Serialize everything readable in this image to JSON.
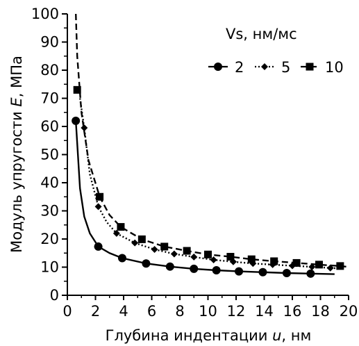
{
  "chart_data": {
    "type": "scatter",
    "xlabel_prefix": "Глубина индентации ",
    "xlabel_var": "u",
    "xlabel_suffix": ", нм",
    "ylabel_prefix": "Модуль упругости ",
    "ylabel_var": "E",
    "ylabel_suffix": ", МПа",
    "xlim": [
      0,
      20
    ],
    "ylim": [
      0,
      100
    ],
    "xticks": [
      0,
      2,
      4,
      6,
      8,
      10,
      12,
      14,
      16,
      18,
      20
    ],
    "yticks": [
      0,
      10,
      20,
      30,
      40,
      50,
      60,
      70,
      80,
      90,
      100
    ],
    "grid": false,
    "legend_title": "Vs, нм/мс",
    "legend_position": "top-right",
    "color": "#000000",
    "series": [
      {
        "name": "2",
        "marker": "circle",
        "line": "solid",
        "points": [
          [
            0.6,
            62
          ],
          [
            2.2,
            17.3
          ],
          [
            3.9,
            13.2
          ],
          [
            5.6,
            11.3
          ],
          [
            7.3,
            10.2
          ],
          [
            9,
            9.4
          ],
          [
            10.6,
            8.9
          ],
          [
            12.2,
            8.5
          ],
          [
            13.9,
            8.2
          ],
          [
            15.6,
            7.9
          ],
          [
            17.3,
            7.7
          ]
        ],
        "curve": [
          [
            0.6,
            62
          ],
          [
            0.9,
            38
          ],
          [
            1.2,
            28
          ],
          [
            1.6,
            22
          ],
          [
            2.2,
            17.3
          ],
          [
            3,
            15
          ],
          [
            3.9,
            13.2
          ],
          [
            5.6,
            11.3
          ],
          [
            7.3,
            10.2
          ],
          [
            9,
            9.4
          ],
          [
            10.6,
            8.9
          ],
          [
            12.2,
            8.5
          ],
          [
            13.9,
            8.2
          ],
          [
            15.6,
            7.9
          ],
          [
            17.3,
            7.7
          ],
          [
            19,
            7.5
          ]
        ]
      },
      {
        "name": "5",
        "marker": "diamond",
        "line": "dotted",
        "points": [
          [
            1.2,
            59.5
          ],
          [
            2.2,
            31.5
          ],
          [
            3.5,
            22
          ],
          [
            4.8,
            18.6
          ],
          [
            6.2,
            16.3
          ],
          [
            7.6,
            14.7
          ],
          [
            9,
            13.6
          ],
          [
            10.4,
            12.6
          ],
          [
            11.8,
            11.9
          ],
          [
            13.2,
            11.3
          ],
          [
            14.6,
            10.9
          ],
          [
            16,
            10.5
          ],
          [
            17.4,
            10.1
          ],
          [
            18.7,
            9.7
          ]
        ],
        "curve": [
          [
            0.9,
            70
          ],
          [
            1.2,
            59.5
          ],
          [
            1.6,
            43
          ],
          [
            2.2,
            31.5
          ],
          [
            2.8,
            26
          ],
          [
            3.5,
            22
          ],
          [
            4.8,
            18.6
          ],
          [
            6.2,
            16.3
          ],
          [
            7.6,
            14.7
          ],
          [
            9,
            13.6
          ],
          [
            10.4,
            12.6
          ],
          [
            11.8,
            11.9
          ],
          [
            13.2,
            11.3
          ],
          [
            14.6,
            10.9
          ],
          [
            16,
            10.5
          ],
          [
            17.4,
            10.1
          ],
          [
            18.7,
            9.7
          ],
          [
            19.5,
            9.5
          ]
        ]
      },
      {
        "name": "10",
        "marker": "square",
        "line": "dashed",
        "points": [
          [
            0.7,
            73
          ],
          [
            2.3,
            35
          ],
          [
            3.8,
            24.3
          ],
          [
            5.3,
            19.9
          ],
          [
            6.9,
            17.3
          ],
          [
            8.5,
            15.8
          ],
          [
            10,
            14.5
          ],
          [
            11.6,
            13.7
          ],
          [
            13.1,
            12.8
          ],
          [
            14.7,
            12.1
          ],
          [
            16.3,
            11.5
          ],
          [
            17.9,
            10.9
          ],
          [
            19.4,
            10.4
          ]
        ],
        "curve": [
          [
            0.6,
            100
          ],
          [
            0.7,
            85
          ],
          [
            1,
            65
          ],
          [
            1.5,
            48
          ],
          [
            2.3,
            35
          ],
          [
            3,
            28.5
          ],
          [
            3.8,
            24.3
          ],
          [
            5.3,
            19.9
          ],
          [
            6.9,
            17.3
          ],
          [
            8.5,
            15.8
          ],
          [
            10,
            14.5
          ],
          [
            11.6,
            13.7
          ],
          [
            13.1,
            12.8
          ],
          [
            14.7,
            12.1
          ],
          [
            16.3,
            11.5
          ],
          [
            17.9,
            10.9
          ],
          [
            19.4,
            10.4
          ],
          [
            20,
            10.1
          ]
        ]
      }
    ]
  }
}
